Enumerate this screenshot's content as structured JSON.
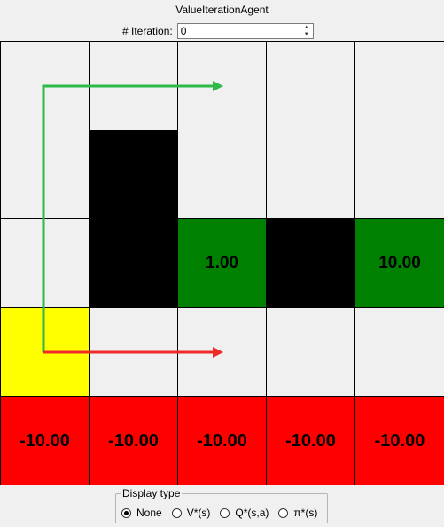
{
  "window": {
    "title": "ValueIterationAgent"
  },
  "iteration": {
    "label": "# Iteration:",
    "value": "0"
  },
  "grid": {
    "rows": [
      [
        {
          "type": "empty",
          "label": ""
        },
        {
          "type": "empty",
          "label": ""
        },
        {
          "type": "empty",
          "label": ""
        },
        {
          "type": "empty",
          "label": ""
        },
        {
          "type": "empty",
          "label": ""
        }
      ],
      [
        {
          "type": "empty",
          "label": ""
        },
        {
          "type": "wall",
          "label": ""
        },
        {
          "type": "empty",
          "label": ""
        },
        {
          "type": "empty",
          "label": ""
        },
        {
          "type": "empty",
          "label": ""
        }
      ],
      [
        {
          "type": "empty",
          "label": ""
        },
        {
          "type": "wall",
          "label": ""
        },
        {
          "type": "green",
          "label": "1.00"
        },
        {
          "type": "wall",
          "label": ""
        },
        {
          "type": "green",
          "label": "10.00"
        }
      ],
      [
        {
          "type": "yellow",
          "label": ""
        },
        {
          "type": "empty",
          "label": ""
        },
        {
          "type": "empty",
          "label": ""
        },
        {
          "type": "empty",
          "label": ""
        },
        {
          "type": "empty",
          "label": ""
        }
      ],
      [
        {
          "type": "red",
          "label": "-10.00"
        },
        {
          "type": "red",
          "label": "-10.00"
        },
        {
          "type": "red",
          "label": "-10.00"
        },
        {
          "type": "red",
          "label": "-10.00"
        },
        {
          "type": "red",
          "label": "-10.00"
        }
      ]
    ]
  },
  "colors": {
    "empty": "#f0f0f0",
    "wall": "#000000",
    "green": "#008000",
    "red": "#ff0000",
    "yellow": "#ffff00",
    "arrow_green": "#2db84a",
    "arrow_red": "#ee2a2a"
  },
  "display_type": {
    "legend": "Display type",
    "options": [
      {
        "label": "None",
        "checked": true
      },
      {
        "label": "V*(s)",
        "checked": false
      },
      {
        "label": "Q*(s,a)",
        "checked": false
      },
      {
        "label": "π*(s)",
        "checked": false
      }
    ]
  }
}
